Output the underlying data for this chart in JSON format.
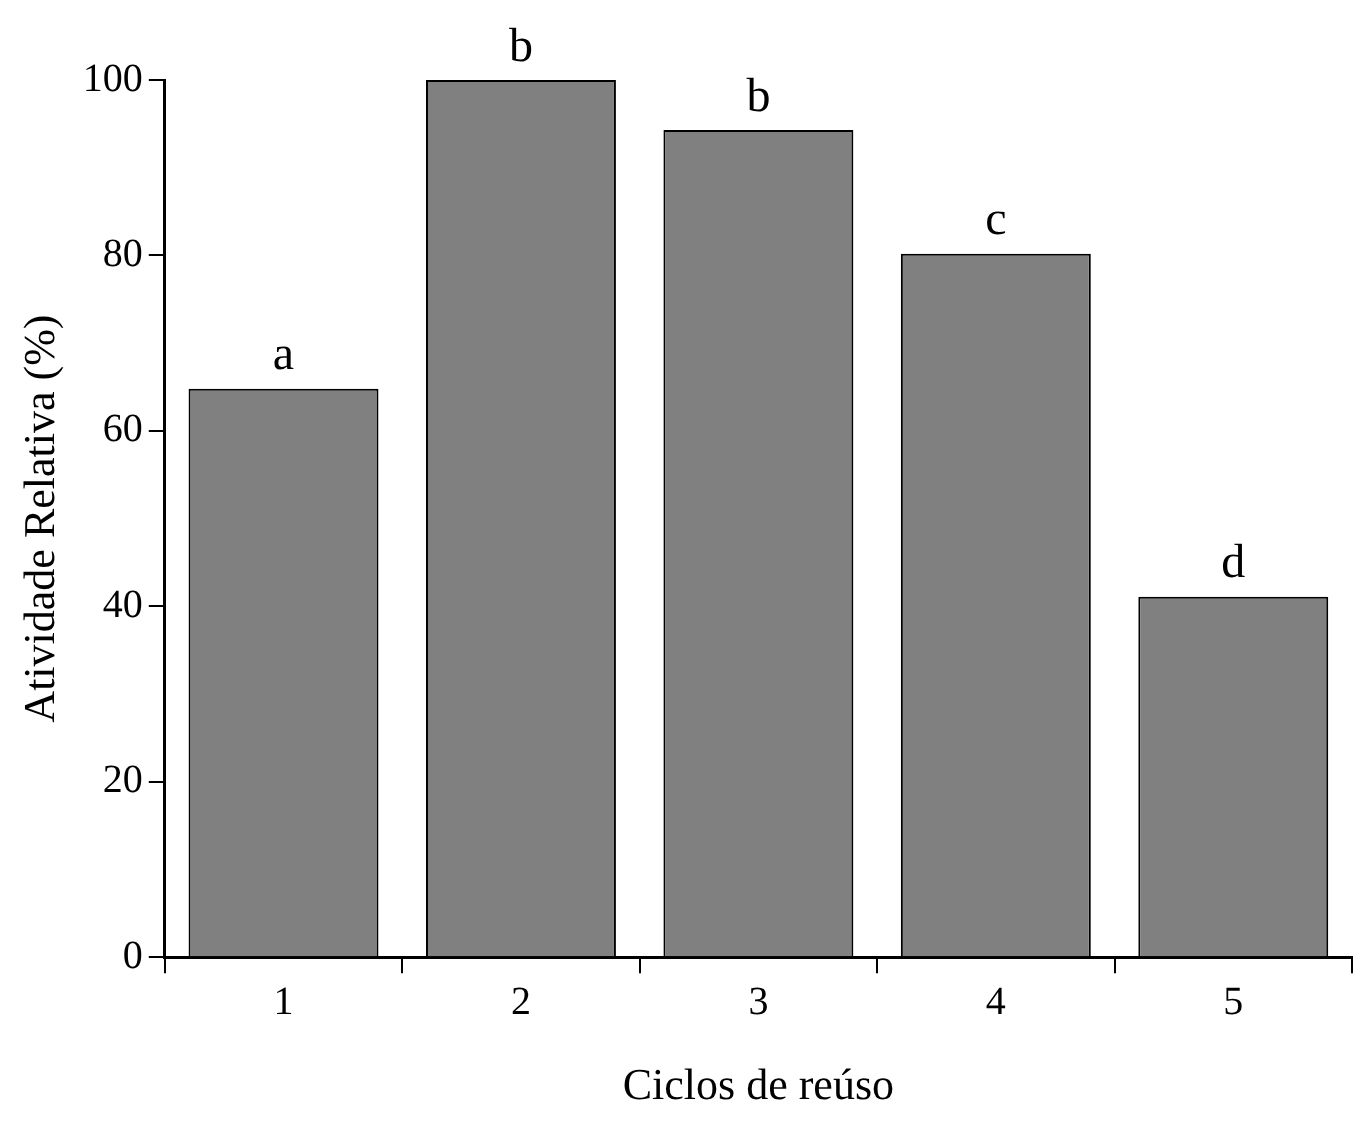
{
  "chart_data": {
    "type": "bar",
    "xlabel": "Ciclos de reúso",
    "ylabel": "Atividade Relativa (%)",
    "categories": [
      "1",
      "2",
      "3",
      "4",
      "5"
    ],
    "values": [
      64.8,
      100,
      94.3,
      80.2,
      41.1
    ],
    "color": "#808080",
    "ylim": [
      0,
      100
    ],
    "yticks": [
      0,
      20,
      40,
      60,
      80,
      100
    ],
    "grid": false,
    "legend": false,
    "annotations": [
      {
        "text": "a",
        "x": "1",
        "y": 64.8
      },
      {
        "text": "b",
        "x": "2",
        "y": 100
      },
      {
        "text": "b",
        "x": "3",
        "y": 94.3
      },
      {
        "text": "c",
        "x": "4",
        "y": 80.2
      },
      {
        "text": "d",
        "x": "5",
        "y": 41.1
      }
    ]
  }
}
